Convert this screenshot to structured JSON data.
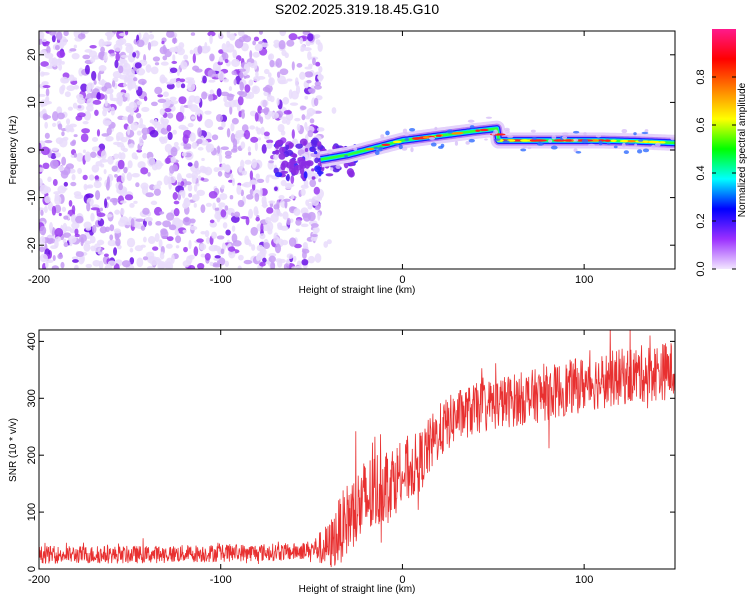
{
  "title": "S202.2025.319.18.45.G10",
  "chart_data": [
    {
      "type": "heatmap",
      "name": "spectrogram",
      "xlabel": "Height of straight line (km)",
      "ylabel": "Frequency (Hz)",
      "xlim": [
        -200,
        150
      ],
      "ylim": [
        -25,
        25
      ],
      "xticks": [
        -200,
        -100,
        0,
        100
      ],
      "xtick_labels": [
        "-200",
        "-100",
        "0",
        "100"
      ],
      "yticks": [
        -20,
        -10,
        0,
        10,
        20
      ],
      "ytick_labels": [
        "-20",
        "-10",
        "0",
        "10",
        "20"
      ],
      "colorbar": {
        "label": "Normalized spectral amplitude",
        "range": [
          0,
          1
        ],
        "ticks": [
          0.0,
          0.2,
          0.4,
          0.6,
          0.8
        ],
        "tick_labels": [
          "0.0",
          "0.2",
          "0.4",
          "0.6",
          "0.8"
        ],
        "colors": [
          "#f2e6ff",
          "#9b30ff",
          "#0000ff",
          "#00ffff",
          "#00ff00",
          "#ffff00",
          "#ff8000",
          "#ff0000",
          "#ff1a8c"
        ]
      },
      "noise_region_km": [
        -200,
        -45
      ],
      "signal_ridge": [
        {
          "x": -45,
          "y": -2
        },
        {
          "x": -30,
          "y": -1
        },
        {
          "x": -20,
          "y": 0
        },
        {
          "x": -10,
          "y": 1
        },
        {
          "x": 0,
          "y": 2
        },
        {
          "x": 10,
          "y": 2.5
        },
        {
          "x": 20,
          "y": 3
        },
        {
          "x": 30,
          "y": 3.5
        },
        {
          "x": 40,
          "y": 4
        },
        {
          "x": 52,
          "y": 4.5
        },
        {
          "x": 53,
          "y": 2
        },
        {
          "x": 80,
          "y": 2
        },
        {
          "x": 110,
          "y": 2
        },
        {
          "x": 130,
          "y": 1.8
        },
        {
          "x": 150,
          "y": 1.5
        }
      ]
    },
    {
      "type": "line",
      "name": "snr",
      "xlabel": "Height of straight line (km)",
      "ylabel": "SNR (10 * v/v)",
      "xlim": [
        -200,
        150
      ],
      "ylim": [
        0,
        420
      ],
      "xticks": [
        -200,
        -100,
        0,
        100
      ],
      "xtick_labels": [
        "-200",
        "-100",
        "0",
        "100"
      ],
      "yticks": [
        0,
        100,
        200,
        300,
        400
      ],
      "ytick_labels": [
        "0",
        "100",
        "200",
        "300",
        "400"
      ],
      "color": "#e83030",
      "trend": [
        {
          "x": -200,
          "y": 25
        },
        {
          "x": -150,
          "y": 25
        },
        {
          "x": -100,
          "y": 28
        },
        {
          "x": -60,
          "y": 30
        },
        {
          "x": -40,
          "y": 40
        },
        {
          "x": -30,
          "y": 90
        },
        {
          "x": -20,
          "y": 120
        },
        {
          "x": -10,
          "y": 150
        },
        {
          "x": 0,
          "y": 165
        },
        {
          "x": 10,
          "y": 190
        },
        {
          "x": 20,
          "y": 240
        },
        {
          "x": 30,
          "y": 270
        },
        {
          "x": 50,
          "y": 290
        },
        {
          "x": 75,
          "y": 305
        },
        {
          "x": 100,
          "y": 325
        },
        {
          "x": 125,
          "y": 340
        },
        {
          "x": 150,
          "y": 350
        }
      ],
      "noise_amplitude": [
        {
          "x": -200,
          "y": 12
        },
        {
          "x": -50,
          "y": 12
        },
        {
          "x": -35,
          "y": 45
        },
        {
          "x": -20,
          "y": 60
        },
        {
          "x": 0,
          "y": 45
        },
        {
          "x": 30,
          "y": 35
        },
        {
          "x": 150,
          "y": 40
        }
      ]
    }
  ]
}
